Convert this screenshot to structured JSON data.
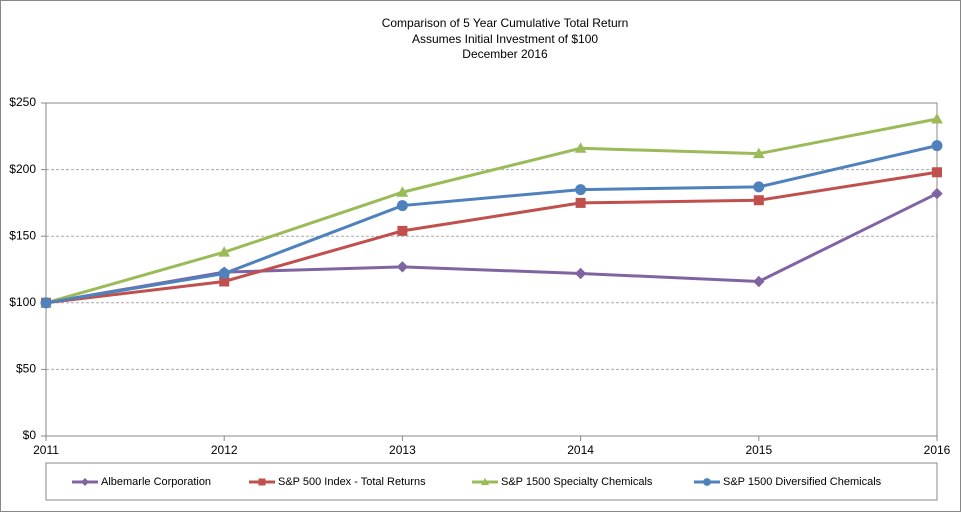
{
  "chart_data": {
    "type": "line",
    "title": "Comparison of 5 Year Cumulative Total Return",
    "subtitles": [
      "Assumes Initial Investment of $100",
      "December 2016"
    ],
    "categories": [
      "2011",
      "2012",
      "2013",
      "2014",
      "2015",
      "2016"
    ],
    "series": [
      {
        "name": "Albemarle Corporation",
        "color": "#8064a2",
        "marker": "diamond",
        "values": [
          100,
          123,
          127,
          122,
          116,
          182
        ]
      },
      {
        "name": "S&P 500 Index - Total Returns",
        "color": "#c0504d",
        "marker": "square",
        "values": [
          100,
          116,
          154,
          175,
          177,
          198
        ]
      },
      {
        "name": "S&P 1500 Specialty Chemicals",
        "color": "#9bbb59",
        "marker": "triangle",
        "values": [
          100,
          138,
          183,
          216,
          212,
          238
        ]
      },
      {
        "name": "S&P 1500 Diversified Chemicals",
        "color": "#4f81bd",
        "marker": "circle",
        "values": [
          100,
          122,
          173,
          185,
          187,
          218
        ]
      }
    ],
    "ylim": [
      0,
      250
    ],
    "yticks": [
      {
        "value": 0,
        "label": "$0"
      },
      {
        "value": 50,
        "label": "$50"
      },
      {
        "value": 100,
        "label": "$100"
      },
      {
        "value": 150,
        "label": "$150"
      },
      {
        "value": 200,
        "label": "$200"
      },
      {
        "value": 250,
        "label": "$250"
      }
    ],
    "grid": true,
    "legend": "bottom"
  }
}
